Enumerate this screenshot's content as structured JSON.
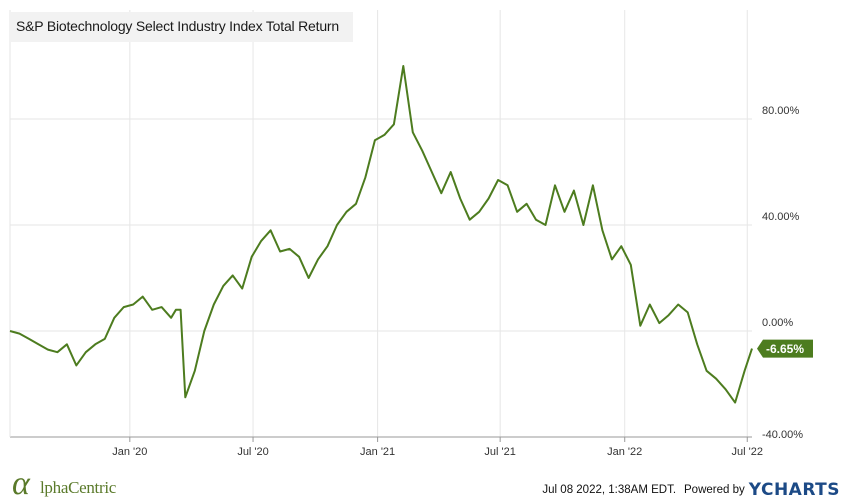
{
  "chart_data": {
    "type": "line",
    "title": "S&P Biotechnology Select Industry Index Total Return",
    "x_tick_labels": [
      "Jan '20",
      "Jul '20",
      "Jan '21",
      "Jul '21",
      "Jan '22",
      "Jul '22"
    ],
    "y_tick_labels": [
      "80.00%",
      "40.00%",
      "0.00%",
      "-40.00%"
    ],
    "y_ticks": [
      80,
      40,
      0,
      -40
    ],
    "ylim": [
      -40,
      100
    ],
    "x_range": [
      "2019-07-08",
      "2022-07-08"
    ],
    "grid": true,
    "series": [
      {
        "name": "S&P Biotechnology Select Industry Index Total Return",
        "color": "#4d7c1f",
        "last_value_label": "-6.65%",
        "points": [
          [
            "2019-07-08",
            0
          ],
          [
            "2019-07-22",
            -1
          ],
          [
            "2019-08-05",
            -3
          ],
          [
            "2019-08-19",
            -5
          ],
          [
            "2019-09-02",
            -7
          ],
          [
            "2019-09-16",
            -8
          ],
          [
            "2019-09-30",
            -5
          ],
          [
            "2019-10-14",
            -13
          ],
          [
            "2019-10-28",
            -8
          ],
          [
            "2019-11-11",
            -5
          ],
          [
            "2019-11-25",
            -3
          ],
          [
            "2019-12-09",
            5
          ],
          [
            "2019-12-23",
            9
          ],
          [
            "2020-01-06",
            10
          ],
          [
            "2020-01-20",
            13
          ],
          [
            "2020-02-03",
            8
          ],
          [
            "2020-02-17",
            9
          ],
          [
            "2020-03-02",
            5
          ],
          [
            "2020-03-09",
            8
          ],
          [
            "2020-03-16",
            8
          ],
          [
            "2020-03-23",
            -25
          ],
          [
            "2020-04-06",
            -15
          ],
          [
            "2020-04-20",
            0
          ],
          [
            "2020-05-04",
            10
          ],
          [
            "2020-05-18",
            17
          ],
          [
            "2020-06-01",
            21
          ],
          [
            "2020-06-15",
            16
          ],
          [
            "2020-06-29",
            28
          ],
          [
            "2020-07-13",
            34
          ],
          [
            "2020-07-27",
            38
          ],
          [
            "2020-08-10",
            30
          ],
          [
            "2020-08-24",
            31
          ],
          [
            "2020-09-07",
            28
          ],
          [
            "2020-09-21",
            20
          ],
          [
            "2020-10-05",
            27
          ],
          [
            "2020-10-19",
            32
          ],
          [
            "2020-11-02",
            40
          ],
          [
            "2020-11-16",
            45
          ],
          [
            "2020-11-30",
            48
          ],
          [
            "2020-12-14",
            58
          ],
          [
            "2020-12-28",
            72
          ],
          [
            "2021-01-11",
            74
          ],
          [
            "2021-01-25",
            78
          ],
          [
            "2021-02-08",
            100
          ],
          [
            "2021-02-22",
            75
          ],
          [
            "2021-03-08",
            68
          ],
          [
            "2021-03-22",
            60
          ],
          [
            "2021-04-05",
            52
          ],
          [
            "2021-04-19",
            60
          ],
          [
            "2021-05-03",
            50
          ],
          [
            "2021-05-17",
            42
          ],
          [
            "2021-05-31",
            45
          ],
          [
            "2021-06-14",
            50
          ],
          [
            "2021-06-28",
            57
          ],
          [
            "2021-07-12",
            55
          ],
          [
            "2021-07-26",
            45
          ],
          [
            "2021-08-09",
            48
          ],
          [
            "2021-08-23",
            42
          ],
          [
            "2021-09-06",
            40
          ],
          [
            "2021-09-20",
            55
          ],
          [
            "2021-10-04",
            45
          ],
          [
            "2021-10-18",
            53
          ],
          [
            "2021-11-01",
            40
          ],
          [
            "2021-11-15",
            55
          ],
          [
            "2021-11-29",
            38
          ],
          [
            "2021-12-13",
            27
          ],
          [
            "2021-12-27",
            32
          ],
          [
            "2022-01-10",
            25
          ],
          [
            "2022-01-24",
            2
          ],
          [
            "2022-02-07",
            10
          ],
          [
            "2022-02-21",
            3
          ],
          [
            "2022-03-07",
            6
          ],
          [
            "2022-03-21",
            10
          ],
          [
            "2022-04-04",
            7
          ],
          [
            "2022-04-18",
            -5
          ],
          [
            "2022-05-02",
            -15
          ],
          [
            "2022-05-16",
            -18
          ],
          [
            "2022-05-30",
            -22
          ],
          [
            "2022-06-13",
            -27
          ],
          [
            "2022-06-27",
            -15
          ],
          [
            "2022-07-08",
            -6.65
          ]
        ]
      }
    ]
  },
  "legend": {
    "label": "S&P Biotechnology Select Industry Index Total Return"
  },
  "footer": {
    "logo_mark": "α",
    "logo_text": "lphaCentric",
    "timestamp": "Jul 08 2022, 1:38AM EDT.",
    "powered_by": "Powered by",
    "brand_y": "Y",
    "brand_rest": "CHARTS"
  },
  "colors": {
    "series": "#4d7c1f",
    "brand": "#1c4a86",
    "grid": "#e6e6e6"
  }
}
